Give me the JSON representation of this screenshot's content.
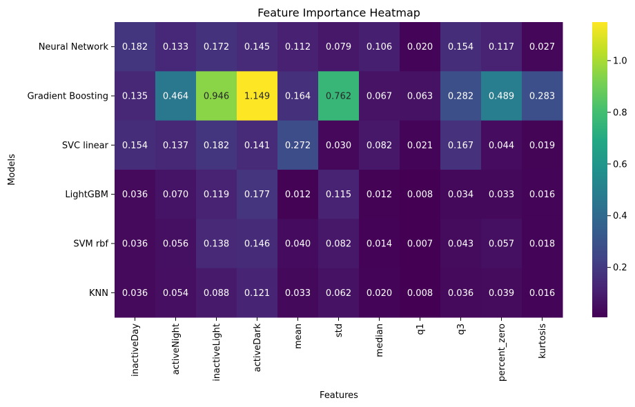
{
  "chart_data": {
    "type": "heatmap",
    "title": "Feature Importance Heatmap",
    "xlabel": "Features",
    "ylabel": "Models",
    "colormap": "viridis",
    "x_categories": [
      "inactiveDay",
      "activeNight",
      "inactiveLight",
      "activeDark",
      "mean",
      "std",
      "median",
      "q1",
      "q3",
      "percent_zero",
      "kurtosis"
    ],
    "y_categories": [
      "Neural Network",
      "Gradient Boosting",
      "SVC linear",
      "LightGBM",
      "SVM rbf",
      "KNN"
    ],
    "values": [
      [
        0.182,
        0.133,
        0.172,
        0.145,
        0.112,
        0.079,
        0.106,
        0.02,
        0.154,
        0.117,
        0.027
      ],
      [
        0.135,
        0.464,
        0.946,
        1.149,
        0.164,
        0.762,
        0.067,
        0.063,
        0.282,
        0.489,
        0.283
      ],
      [
        0.154,
        0.137,
        0.182,
        0.141,
        0.272,
        0.03,
        0.082,
        0.021,
        0.167,
        0.044,
        0.019
      ],
      [
        0.036,
        0.07,
        0.119,
        0.177,
        0.012,
        0.115,
        0.012,
        0.008,
        0.034,
        0.033,
        0.016
      ],
      [
        0.036,
        0.056,
        0.138,
        0.146,
        0.04,
        0.082,
        0.014,
        0.007,
        0.043,
        0.057,
        0.018
      ],
      [
        0.036,
        0.054,
        0.088,
        0.121,
        0.033,
        0.062,
        0.02,
        0.008,
        0.036,
        0.039,
        0.016
      ]
    ],
    "value_labels": [
      [
        "0.182",
        "0.133",
        "0.172",
        "0.145",
        "0.112",
        "0.079",
        "0.106",
        "0.020",
        "0.154",
        "0.117",
        "0.027"
      ],
      [
        "0.135",
        "0.464",
        "0.946",
        "1.149",
        "0.164",
        "0.762",
        "0.067",
        "0.063",
        "0.282",
        "0.489",
        "0.283"
      ],
      [
        "0.154",
        "0.137",
        "0.182",
        "0.141",
        "0.272",
        "0.030",
        "0.082",
        "0.021",
        "0.167",
        "0.044",
        "0.019"
      ],
      [
        "0.036",
        "0.070",
        "0.119",
        "0.177",
        "0.012",
        "0.115",
        "0.012",
        "0.008",
        "0.034",
        "0.033",
        "0.016"
      ],
      [
        "0.036",
        "0.056",
        "0.138",
        "0.146",
        "0.040",
        "0.082",
        "0.014",
        "0.007",
        "0.043",
        "0.057",
        "0.018"
      ],
      [
        "0.036",
        "0.054",
        "0.088",
        "0.121",
        "0.033",
        "0.062",
        "0.020",
        "0.008",
        "0.036",
        "0.039",
        "0.016"
      ]
    ],
    "colorbar": {
      "range": [
        0.007,
        1.149
      ],
      "ticks": [
        0.2,
        0.4,
        0.6,
        0.8,
        1.0
      ],
      "tick_labels": [
        "0.2",
        "0.4",
        "0.6",
        "0.8",
        "1.0"
      ]
    },
    "grid": false
  }
}
